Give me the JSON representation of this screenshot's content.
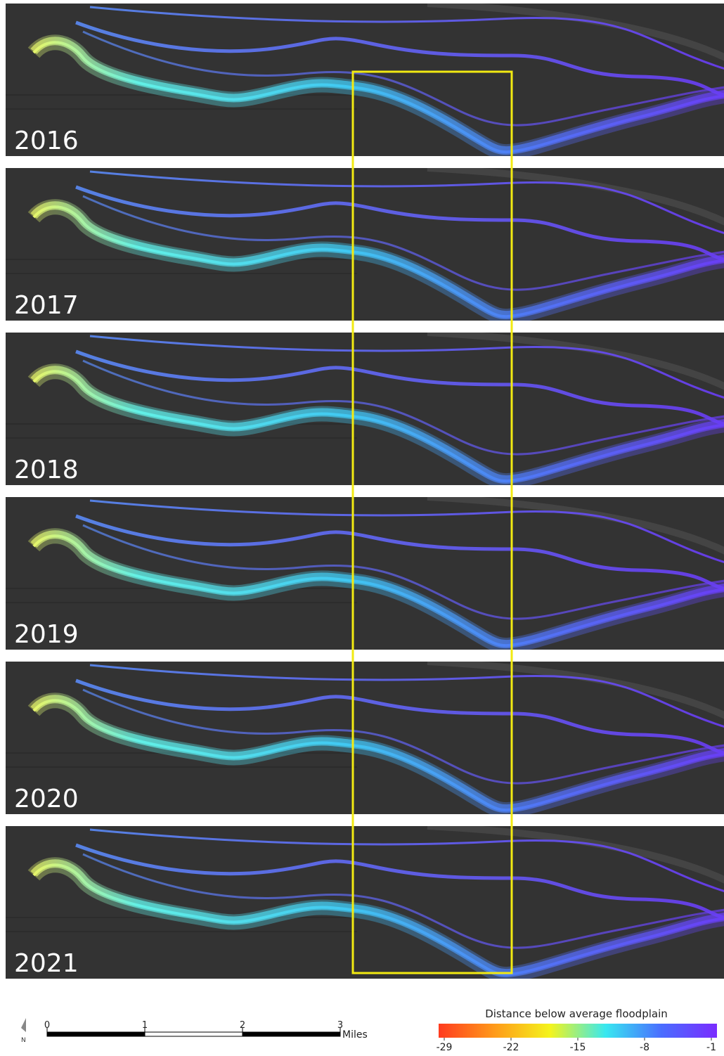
{
  "panels": [
    {
      "year": "2016"
    },
    {
      "year": "2017"
    },
    {
      "year": "2018"
    },
    {
      "year": "2019"
    },
    {
      "year": "2020"
    },
    {
      "year": "2021"
    }
  ],
  "scale_bar": {
    "ticks": [
      0,
      1,
      2,
      3
    ],
    "unit": "Miles",
    "north": "N"
  },
  "legend": {
    "title": "Distance below average floodplain",
    "ticks": [
      -29,
      -22,
      -15,
      -8,
      -1
    ],
    "colors": [
      "#ff3b1f",
      "#ff9a1a",
      "#f4f41c",
      "#38e8f0",
      "#4a6dff",
      "#7a2cff"
    ]
  },
  "highlight_color": "#f2ea12"
}
